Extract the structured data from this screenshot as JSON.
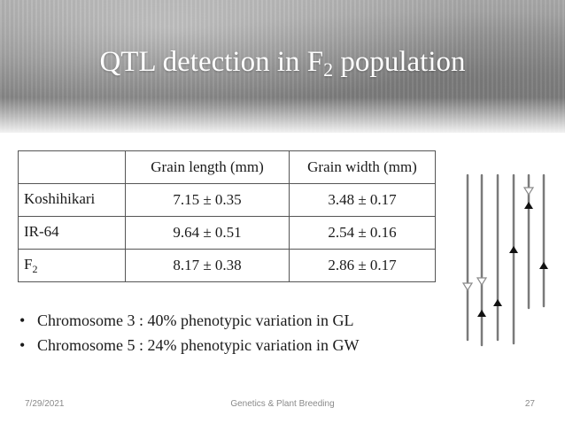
{
  "slide": {
    "title_main": "QTL detection in F",
    "title_sub": "2",
    "title_tail": " population"
  },
  "table": {
    "headers": [
      "",
      "Grain length (mm)",
      "Grain width (mm)"
    ],
    "rows": [
      {
        "label": "Koshihikari",
        "label_sub": "",
        "gl": "7.15 ± 0.35",
        "gw": "3.48 ± 0.17"
      },
      {
        "label": "IR-64",
        "label_sub": "",
        "gl": "9.64 ± 0.51",
        "gw": "2.54 ± 0.16"
      },
      {
        "label": "F",
        "label_sub": "2",
        "gl": "8.17 ± 0.38",
        "gw": "2.86 ± 0.17"
      }
    ]
  },
  "bullets": [
    "Chromosome 3 : 40% phenotypic variation in GL",
    "Chromosome 5 : 24% phenotypic variation in GW"
  ],
  "bullet_symbol": "•",
  "footer": {
    "date": "7/29/2021",
    "center": "Genetics & Plant Breeding",
    "page": "27"
  },
  "colors": {
    "title_text": "#ffffff",
    "header_gray": "#8e8e8e",
    "chromosome_line": "#7a7a7a",
    "marker_filled": "#111111",
    "marker_open": "#9a9a9a"
  },
  "icons": [
    "chromosome-diagram"
  ]
}
